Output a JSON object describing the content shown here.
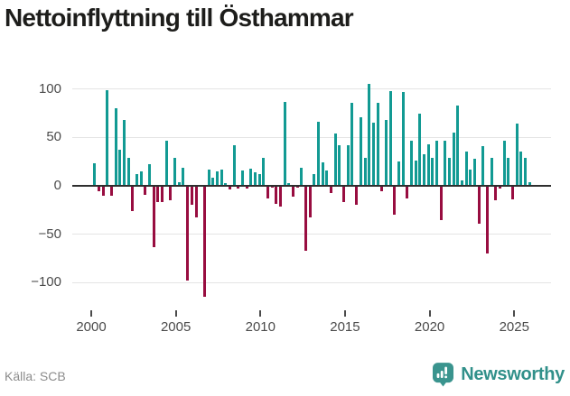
{
  "title": "Nettoinflyttning till Östhammar",
  "footer": {
    "source": "Källa: SCB",
    "brand": "Newsworthy",
    "brand_icon": "speech-bubble-bar-chart"
  },
  "colors": {
    "positive_bar": "#129a93",
    "negative_bar": "#980d40",
    "axis_line": "#2e2e2e",
    "gridline": "#e4e4e4",
    "tick_label": "#4b4b4b",
    "title_text": "#1d1d1b",
    "source_text": "#8c8c8c",
    "brand_teal": "#31908a"
  },
  "chart_data": {
    "type": "bar",
    "title": "Nettoinflyttning till Östhammar",
    "frequency": "quarterly",
    "start_year": 2000,
    "end_year": 2025,
    "xlabel": "",
    "ylabel": "",
    "grid": true,
    "y_ticks": [
      100,
      50,
      0,
      -50,
      -100
    ],
    "x_ticks": [
      2000,
      2005,
      2010,
      2015,
      2020,
      2025
    ],
    "ylim": [
      -128,
      112
    ],
    "values": [
      23,
      -6,
      -10,
      99,
      -10,
      80,
      37,
      68,
      29,
      -26,
      12,
      15,
      -9,
      22,
      -63,
      -17,
      -17,
      47,
      -15,
      29,
      4,
      19,
      -98,
      -20,
      -33,
      0,
      -115,
      17,
      8,
      15,
      17,
      3,
      -4,
      42,
      -3,
      16,
      -3,
      18,
      14,
      12,
      29,
      -13,
      -2,
      -19,
      -21,
      87,
      3,
      -11,
      -2,
      19,
      -67,
      -33,
      12,
      66,
      24,
      16,
      -7,
      54,
      42,
      -17,
      42,
      86,
      -20,
      71,
      29,
      105,
      65,
      86,
      -6,
      68,
      98,
      -30,
      25,
      97,
      -13,
      47,
      26,
      75,
      33,
      43,
      29,
      47,
      -35,
      47,
      29,
      55,
      83,
      6,
      35,
      17,
      28,
      -39,
      41,
      -70,
      29,
      -15,
      -3,
      47,
      29,
      -14,
      64,
      35,
      29,
      4
    ]
  }
}
